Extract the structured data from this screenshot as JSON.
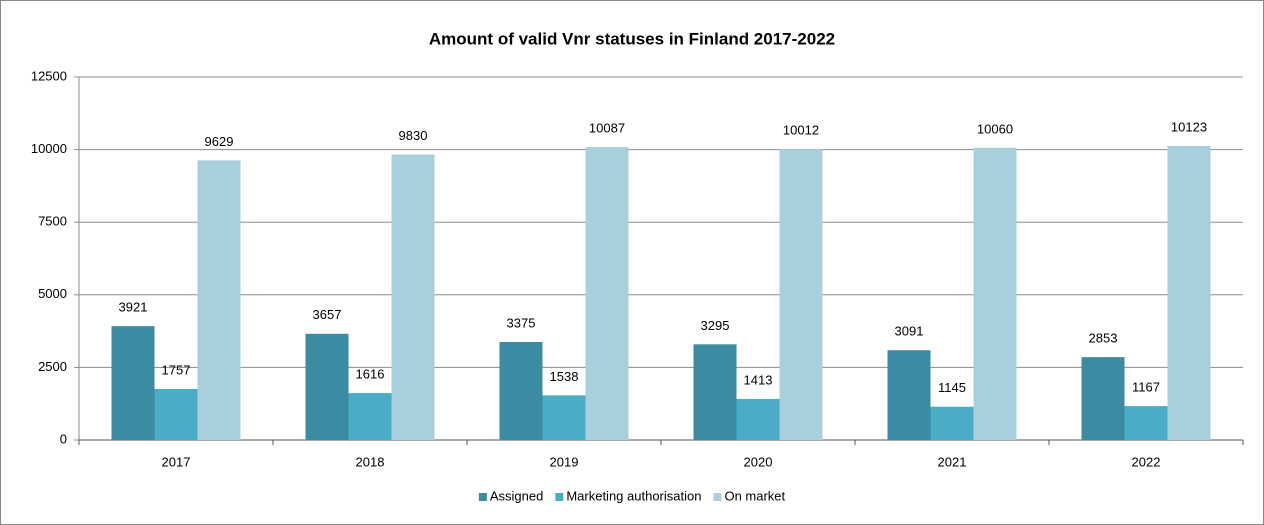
{
  "chart_data": {
    "type": "bar",
    "title": "Amount of valid Vnr statuses in Finland 2017-2022",
    "categories": [
      "2017",
      "2018",
      "2019",
      "2020",
      "2021",
      "2022"
    ],
    "series": [
      {
        "name": "Assigned",
        "color": "#3b8ba3",
        "values": [
          3921,
          3657,
          3375,
          3295,
          3091,
          2853
        ]
      },
      {
        "name": "Marketing authorisation",
        "color": "#4bacc6",
        "values": [
          1757,
          1616,
          1538,
          1413,
          1145,
          1167
        ]
      },
      {
        "name": "On market",
        "color": "#a8cfdc",
        "values": [
          9629,
          9830,
          10087,
          10012,
          10060,
          10123
        ]
      }
    ],
    "ylim": [
      0,
      12500
    ],
    "yticks": [
      0,
      2500,
      5000,
      7500,
      10000,
      12500
    ],
    "grid": true,
    "legend": "bottom"
  }
}
